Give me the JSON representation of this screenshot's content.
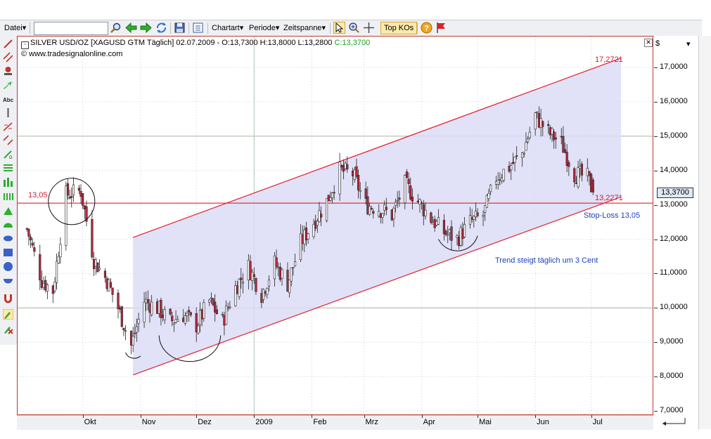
{
  "toolbar": {
    "file_menu": "Datei",
    "search_value": "",
    "chart_type_menu": "Chartart",
    "period_menu": "Periode",
    "timespan_menu": "Zeitspanne",
    "top_kos": "Top KOs"
  },
  "header": {
    "instrument": "SILVER USD/OZ [XAGUSD GTM  Täglich] 02.07.2009 - O:13,7300 H:13,8000 L:13,2800 ",
    "close_label": "C:13,3700",
    "website": "www.tradesignalonline.com"
  },
  "y_axis": {
    "currency_selector": "$",
    "labels": [
      "17,0000",
      "16,0000",
      "15,0000",
      "14,0000",
      "13,0000",
      "12,0000",
      "11,0000",
      "10,0000",
      "9,0000",
      "8,0000",
      "7,0000"
    ],
    "current_price": "13,3700"
  },
  "annotations": {
    "channel_top_value": "17,2721",
    "channel_bottom_value": "13,2271",
    "horizontal_level": "13,05",
    "stop_loss": "Stop-Loss 13,05",
    "trend_note": "Trend steigt täglich um 3 Cent"
  },
  "colors": {
    "channel_fill": "#dcdcf6",
    "channel_line": "#e0202a",
    "candle_up": "#ffffff",
    "candle_down": "#b7263f",
    "close_text": "#1aa01a",
    "axis_marker_bg": "#dfe8f5"
  },
  "chart_data": {
    "type": "candlestick",
    "title": "SILVER USD/OZ [XAGUSD GTM  Täglich]",
    "x_axis_labels": [
      "Okt",
      "Nov",
      "Dez",
      "2009",
      "Feb",
      "Mrz",
      "Apr",
      "Mai",
      "Jun",
      "Jul"
    ],
    "y_range": [
      6.9,
      17.9
    ],
    "last_bar": {
      "date": "02.07.2009",
      "open": 13.73,
      "high": 13.8,
      "low": 13.28,
      "close": 13.37
    },
    "trend_channel": {
      "start": "2008-10-28",
      "end": "2009-07-17",
      "upper": [
        12.05,
        17.27
      ],
      "lower": [
        8.05,
        13.23
      ]
    },
    "horizontal_line": 13.05,
    "waypoints": [
      {
        "date": "2008-09-01",
        "price": 12.3
      },
      {
        "date": "2008-09-09",
        "price": 10.8
      },
      {
        "date": "2008-09-15",
        "price": 10.5
      },
      {
        "date": "2008-09-22",
        "price": 13.3
      },
      {
        "date": "2008-09-30",
        "price": 13.4
      },
      {
        "date": "2008-10-07",
        "price": 11.4
      },
      {
        "date": "2008-10-14",
        "price": 10.8
      },
      {
        "date": "2008-10-20",
        "price": 10.0
      },
      {
        "date": "2008-10-27",
        "price": 8.9
      },
      {
        "date": "2008-11-03",
        "price": 10.2
      },
      {
        "date": "2008-11-10",
        "price": 10.0
      },
      {
        "date": "2008-11-17",
        "price": 9.6
      },
      {
        "date": "2008-11-24",
        "price": 9.8
      },
      {
        "date": "2008-12-01",
        "price": 9.5
      },
      {
        "date": "2008-12-08",
        "price": 10.2
      },
      {
        "date": "2008-12-15",
        "price": 9.6
      },
      {
        "date": "2008-12-22",
        "price": 10.6
      },
      {
        "date": "2008-12-29",
        "price": 11.2
      },
      {
        "date": "2009-01-05",
        "price": 10.4
      },
      {
        "date": "2009-01-12",
        "price": 11.3
      },
      {
        "date": "2009-01-19",
        "price": 10.7
      },
      {
        "date": "2009-01-26",
        "price": 11.9
      },
      {
        "date": "2009-02-02",
        "price": 12.5
      },
      {
        "date": "2009-02-09",
        "price": 13.1
      },
      {
        "date": "2009-02-16",
        "price": 14.0
      },
      {
        "date": "2009-02-23",
        "price": 13.9
      },
      {
        "date": "2009-03-02",
        "price": 13.0
      },
      {
        "date": "2009-03-09",
        "price": 12.9
      },
      {
        "date": "2009-03-16",
        "price": 12.7
      },
      {
        "date": "2009-03-23",
        "price": 13.6
      },
      {
        "date": "2009-03-30",
        "price": 13.1
      },
      {
        "date": "2009-04-06",
        "price": 12.6
      },
      {
        "date": "2009-04-13",
        "price": 12.2
      },
      {
        "date": "2009-04-20",
        "price": 12.0
      },
      {
        "date": "2009-04-27",
        "price": 12.5
      },
      {
        "date": "2009-05-04",
        "price": 12.7
      },
      {
        "date": "2009-05-11",
        "price": 13.8
      },
      {
        "date": "2009-05-18",
        "price": 14.1
      },
      {
        "date": "2009-05-25",
        "price": 14.5
      },
      {
        "date": "2009-06-01",
        "price": 15.6
      },
      {
        "date": "2009-06-08",
        "price": 15.1
      },
      {
        "date": "2009-06-15",
        "price": 14.8
      },
      {
        "date": "2009-06-22",
        "price": 13.9
      },
      {
        "date": "2009-06-29",
        "price": 13.8
      },
      {
        "date": "2009-07-02",
        "price": 13.37
      }
    ]
  }
}
